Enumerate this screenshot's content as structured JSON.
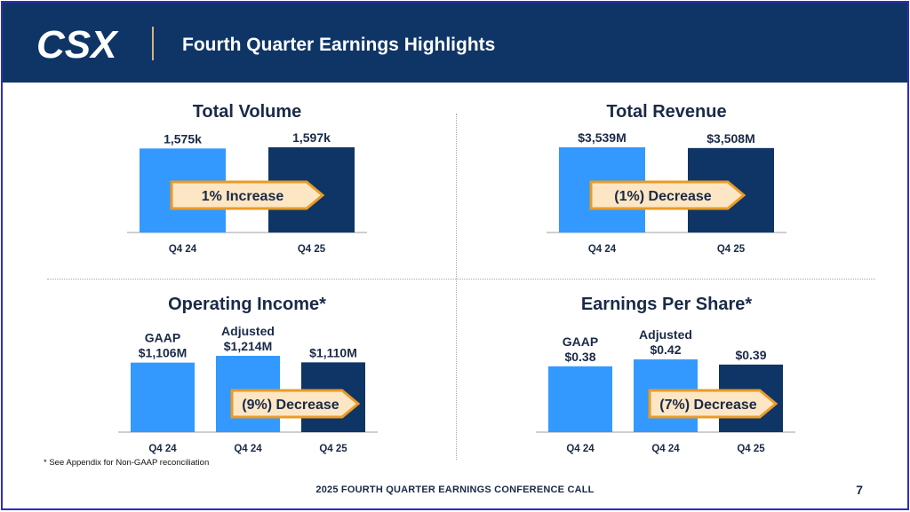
{
  "header": {
    "logo_text": "CSX",
    "title": "Fourth Quarter Earnings Highlights"
  },
  "colors": {
    "light_bar": "#3399ff",
    "dark_bar": "#0f3566",
    "arrow_fill": "#fde6c4",
    "arrow_stroke": "#e99b26",
    "header_bg": "#0f3566"
  },
  "chart_data": [
    {
      "type": "bar",
      "title": "Total Volume",
      "categories": [
        "Q4 24",
        "Q4 25"
      ],
      "values": [
        1575,
        1597
      ],
      "unit": "k",
      "data_labels": [
        "1,575k",
        "1,597k"
      ],
      "top_labels": [
        "",
        ""
      ],
      "arrow_label": "1% Increase"
    },
    {
      "type": "bar",
      "title": "Total Revenue",
      "categories": [
        "Q4 24",
        "Q4 25"
      ],
      "values": [
        3539,
        3508
      ],
      "unit": "$M",
      "data_labels": [
        "$3,539M",
        "$3,508M"
      ],
      "top_labels": [
        "",
        ""
      ],
      "arrow_label": "(1%) Decrease"
    },
    {
      "type": "bar",
      "title": "Operating Income*",
      "categories": [
        "Q4 24",
        "Q4 24",
        "Q4 25"
      ],
      "values": [
        1106,
        1214,
        1110
      ],
      "unit": "$M",
      "data_labels": [
        "$1,106M",
        "$1,214M",
        "$1,110M"
      ],
      "top_labels": [
        "GAAP",
        "Adjusted",
        ""
      ],
      "arrow_label": "(9%) Decrease"
    },
    {
      "type": "bar",
      "title": "Earnings Per Share*",
      "categories": [
        "Q4 24",
        "Q4 24",
        "Q4 25"
      ],
      "values": [
        0.38,
        0.42,
        0.39
      ],
      "unit": "$",
      "data_labels": [
        "$0.38",
        "$0.42",
        "$0.39"
      ],
      "top_labels": [
        "GAAP",
        "Adjusted",
        ""
      ],
      "arrow_label": "(7%) Decrease"
    }
  ],
  "footnote": "* See Appendix for Non-GAAP reconciliation",
  "footer": {
    "text": "2025 FOURTH QUARTER EARNINGS CONFERENCE CALL",
    "page_number": "7"
  }
}
